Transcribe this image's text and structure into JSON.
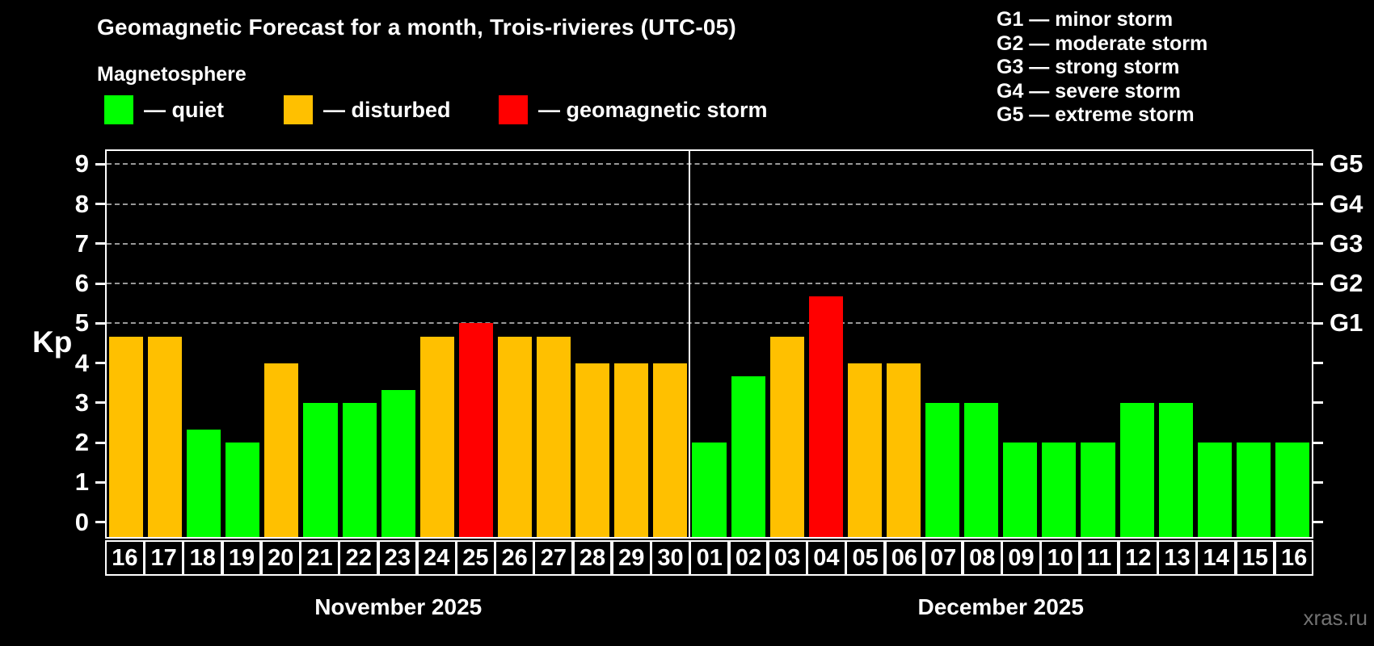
{
  "title": "Geomagnetic Forecast for a month, Trois-rivieres (UTC-05)",
  "subtitle": "Magnetosphere",
  "watermark": "xras.ru",
  "colors": {
    "quiet": "#00ff00",
    "disturbed": "#ffc000",
    "storm": "#ff0000",
    "axis": "#ffffff",
    "grid": "#999999",
    "watermark": "#737373"
  },
  "legend": {
    "items": [
      {
        "status": "quiet",
        "label": "— quiet"
      },
      {
        "status": "disturbed",
        "label": "— disturbed"
      },
      {
        "status": "storm",
        "label": "— geomagnetic storm"
      }
    ]
  },
  "g_scale_legend": {
    "items": [
      {
        "code": "G1",
        "label": "G1 — minor storm"
      },
      {
        "code": "G2",
        "label": "G2 — moderate storm"
      },
      {
        "code": "G3",
        "label": "G3 — strong storm"
      },
      {
        "code": "G4",
        "label": "G4 — severe storm"
      },
      {
        "code": "G5",
        "label": "G5 — extreme storm"
      }
    ]
  },
  "chart_data": {
    "type": "bar",
    "ylabel": "Kp",
    "ylim": [
      -0.37,
      9.33
    ],
    "yticks": [
      0,
      1,
      2,
      3,
      4,
      5,
      6,
      7,
      8,
      9
    ],
    "gridline_levels": [
      5,
      6,
      7,
      8,
      9
    ],
    "right_axis_labels": [
      {
        "level": 5,
        "label": "G1"
      },
      {
        "level": 6,
        "label": "G2"
      },
      {
        "level": 7,
        "label": "G3"
      },
      {
        "level": 8,
        "label": "G4"
      },
      {
        "level": 9,
        "label": "G5"
      }
    ],
    "grid": "dashed horizontal lines at storm levels only",
    "legend_position": "top-left",
    "months": [
      {
        "label": "November 2025",
        "days": [
          {
            "day": "16",
            "kp": 4.67,
            "status": "disturbed"
          },
          {
            "day": "17",
            "kp": 4.67,
            "status": "disturbed"
          },
          {
            "day": "18",
            "kp": 2.33,
            "status": "quiet"
          },
          {
            "day": "19",
            "kp": 2,
            "status": "quiet"
          },
          {
            "day": "20",
            "kp": 4,
            "status": "disturbed"
          },
          {
            "day": "21",
            "kp": 3,
            "status": "quiet"
          },
          {
            "day": "22",
            "kp": 3,
            "status": "quiet"
          },
          {
            "day": "23",
            "kp": 3.33,
            "status": "quiet"
          },
          {
            "day": "24",
            "kp": 4.67,
            "status": "disturbed"
          },
          {
            "day": "25",
            "kp": 5,
            "status": "storm"
          },
          {
            "day": "26",
            "kp": 4.67,
            "status": "disturbed"
          },
          {
            "day": "27",
            "kp": 4.67,
            "status": "disturbed"
          },
          {
            "day": "28",
            "kp": 4,
            "status": "disturbed"
          },
          {
            "day": "29",
            "kp": 4,
            "status": "disturbed"
          },
          {
            "day": "30",
            "kp": 4,
            "status": "disturbed"
          }
        ]
      },
      {
        "label": "December 2025",
        "days": [
          {
            "day": "01",
            "kp": 2,
            "status": "quiet"
          },
          {
            "day": "02",
            "kp": 3.67,
            "status": "quiet"
          },
          {
            "day": "03",
            "kp": 4.67,
            "status": "disturbed"
          },
          {
            "day": "04",
            "kp": 5.67,
            "status": "storm"
          },
          {
            "day": "05",
            "kp": 4,
            "status": "disturbed"
          },
          {
            "day": "06",
            "kp": 4,
            "status": "disturbed"
          },
          {
            "day": "07",
            "kp": 3,
            "status": "quiet"
          },
          {
            "day": "08",
            "kp": 3,
            "status": "quiet"
          },
          {
            "day": "09",
            "kp": 2,
            "status": "quiet"
          },
          {
            "day": "10",
            "kp": 2,
            "status": "quiet"
          },
          {
            "day": "11",
            "kp": 2,
            "status": "quiet"
          },
          {
            "day": "12",
            "kp": 3,
            "status": "quiet"
          },
          {
            "day": "13",
            "kp": 3,
            "status": "quiet"
          },
          {
            "day": "14",
            "kp": 2,
            "status": "quiet"
          },
          {
            "day": "15",
            "kp": 2,
            "status": "quiet"
          },
          {
            "day": "16",
            "kp": 2,
            "status": "quiet"
          }
        ]
      }
    ]
  }
}
